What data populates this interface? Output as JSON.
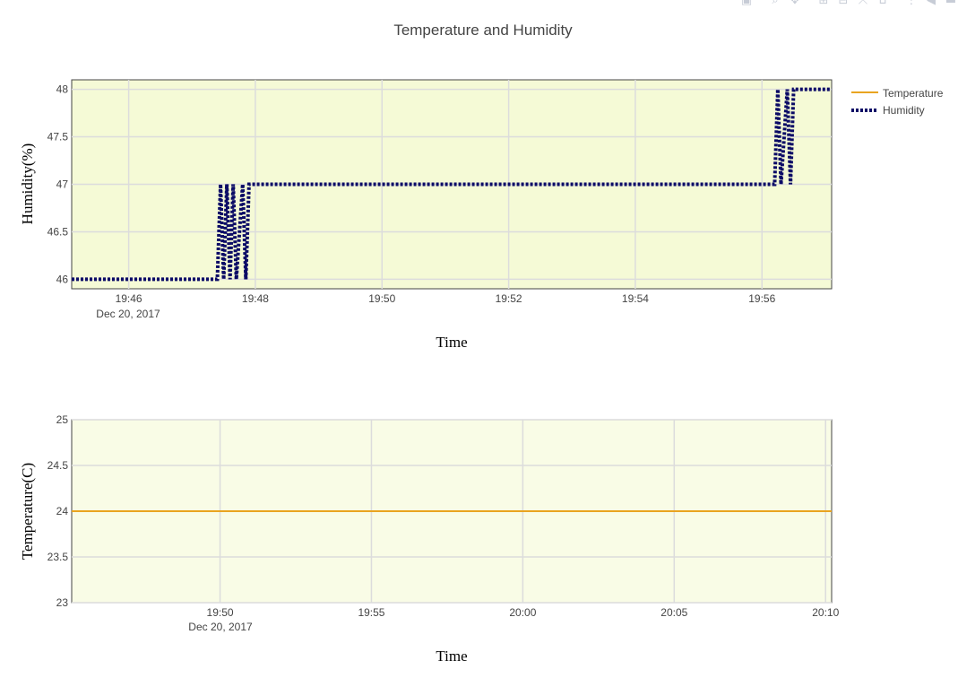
{
  "title": "Temperature and Humidity",
  "colors": {
    "plot_bg": "#f5fad6",
    "plot_bg_bottom": "#f9fce6",
    "temperature": "#e9a420",
    "humidity": "#0b0b66",
    "grid": "#dcdcdc"
  },
  "legend": {
    "position": "top-right",
    "items": [
      {
        "label": "Temperature",
        "style": "solid",
        "color": "#e9a420"
      },
      {
        "label": "Humidity",
        "style": "dotted",
        "color": "#0b0b66"
      }
    ]
  },
  "modebar": {
    "icons": [
      "camera-icon",
      "zoom-icon",
      "pan-icon",
      "zoom-in-icon",
      "zoom-out-icon",
      "autoscale-icon",
      "home-icon",
      "spike-lines-icon",
      "compare-hover-icon",
      "closest-hover-icon"
    ]
  },
  "chart_data": [
    {
      "type": "line",
      "title": "Temperature and Humidity",
      "series": [
        {
          "name": "Humidity",
          "line": "dotted",
          "x": [
            "19:45.1",
            "19:47.4",
            "19:47.45",
            "19:47.5",
            "19:47.55",
            "19:47.6",
            "19:47.65",
            "19:47.7",
            "19:47.8",
            "19:47.85",
            "19:47.9",
            "19:47.95",
            "19:56.2",
            "19:56.25",
            "19:56.3",
            "19:56.4",
            "19:56.45",
            "19:56.5",
            "19:57.1"
          ],
          "y": [
            46,
            46,
            47,
            46,
            47,
            46,
            47,
            46,
            47,
            46,
            47,
            47,
            47,
            48,
            47,
            48,
            47,
            48,
            48
          ]
        }
      ],
      "xlabel": "Time",
      "ylabel": "Humidity(%)",
      "xticks": [
        "19:46",
        "19:48",
        "19:50",
        "19:52",
        "19:54",
        "19:56"
      ],
      "xtick_date": "Dec 20, 2017",
      "yticks": [
        "46",
        "46.5",
        "47",
        "47.5",
        "48"
      ],
      "ylim": [
        45.9,
        48.1
      ],
      "grid": true
    },
    {
      "type": "line",
      "series": [
        {
          "name": "Temperature",
          "line": "solid",
          "x": [
            "19:45.1",
            "20:10.2"
          ],
          "y": [
            24,
            24
          ]
        }
      ],
      "xlabel": "Time",
      "ylabel": "Temperature(C)",
      "xticks": [
        "19:50",
        "19:55",
        "20:00",
        "20:05",
        "20:10"
      ],
      "xtick_date": "Dec 20, 2017",
      "yticks": [
        "23",
        "23.5",
        "24",
        "24.5",
        "25"
      ],
      "ylim": [
        23,
        25
      ],
      "grid": true
    }
  ]
}
